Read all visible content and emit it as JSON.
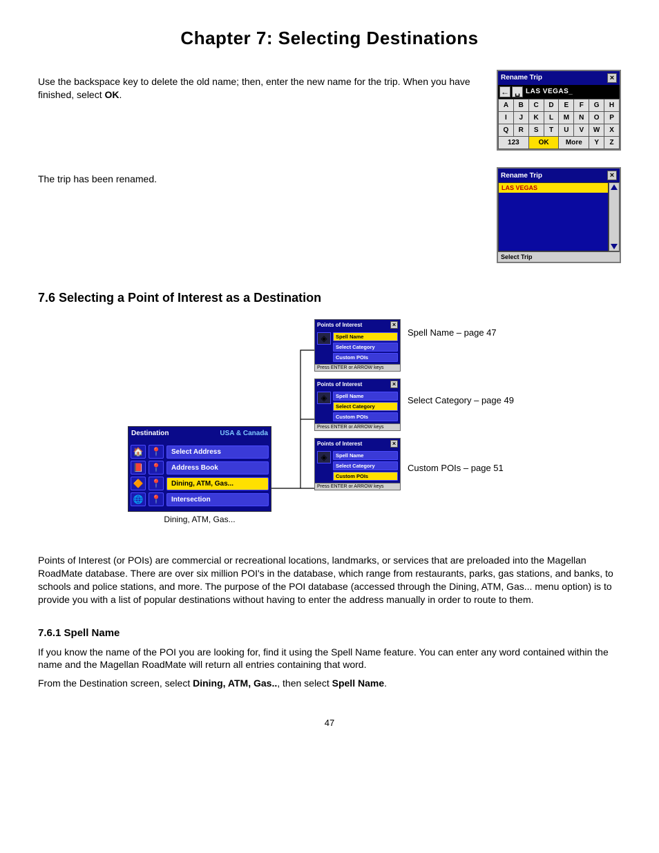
{
  "page": {
    "title": "Chapter 7: Selecting Destinations",
    "number": "47"
  },
  "paragraphs": {
    "intro": "Use the backspace key to delete the old name; then, enter the new name for the trip. When you have finished, select ",
    "intro_bold": "OK",
    "intro_end": ".",
    "renamed": "The trip has been renamed.",
    "poi_desc": "Points of Interest (or POIs) are commercial or recreational locations, landmarks, or services that are preloaded into the Magellan RoadMate database. There are over six million POI's in the database, which range from restaurants, parks, gas stations, and banks, to schools and police stations, and more. The purpose of the POI database (accessed through the Dining, ATM, Gas... menu option) is to provide you with a list of popular destinations without having to enter the address manually in order to route to them.",
    "spellname_desc": "If you know the name of the POI you are looking for, find it using the Spell Name feature. You can enter any word contained within the name and the Magellan RoadMate will return all entries containing that word.",
    "from_dest": "From the Destination screen, select ",
    "from_dest_b1": "Dining, ATM, Gas..",
    "from_dest_mid": ", then select ",
    "from_dest_b2": "Spell Name",
    "from_dest_end": "."
  },
  "headings": {
    "section": "7.6 Selecting a Point of Interest as a Destination",
    "subsection": "7.6.1 Spell Name"
  },
  "keyboard": {
    "title": "Rename Trip",
    "text": "LAS VEGAS_",
    "keys": [
      [
        "A",
        "B",
        "C",
        "D",
        "E",
        "F",
        "G",
        "H"
      ],
      [
        "I",
        "J",
        "K",
        "L",
        "M",
        "N",
        "O",
        "P"
      ],
      [
        "Q",
        "R",
        "S",
        "T",
        "U",
        "V",
        "W",
        "X"
      ]
    ],
    "bottom": {
      "one": "123",
      "ok": "OK",
      "more": "More",
      "y": "Y",
      "z": "Z"
    }
  },
  "triplist": {
    "title": "Rename Trip",
    "selected": "LAS VEGAS",
    "footer": "Select Trip"
  },
  "destination": {
    "title": "Destination",
    "region": "USA & Canada",
    "items": [
      {
        "icon": "🏠",
        "label": "Select Address",
        "hl": false
      },
      {
        "icon": "📕",
        "label": "Address Book",
        "hl": false
      },
      {
        "icon": "🔶",
        "label": "Dining, ATM, Gas...",
        "hl": true
      },
      {
        "icon": "🌐",
        "label": "Intersection",
        "hl": false
      }
    ],
    "caption": "Dining, ATM, Gas..."
  },
  "poi_menu": {
    "title": "Points of Interest",
    "options": [
      "Spell Name",
      "Select Category",
      "Custom POIs"
    ],
    "footer": "Press ENTER or ARROW keys",
    "highlight_per_screen": [
      0,
      1,
      2
    ]
  },
  "side_labels": [
    "Spell Name – page 47",
    "Select Category – page 49",
    "Custom POIs – page 51"
  ],
  "colors": {
    "titlebar": "#0a0a8a",
    "highlight": "#ffe000",
    "blue_btn": "#3a3ad8"
  }
}
